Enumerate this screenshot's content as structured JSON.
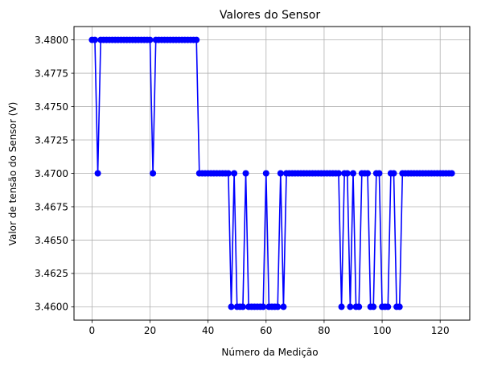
{
  "chart_data": {
    "type": "line",
    "title": "Valores do Sensor",
    "xlabel": "Número da Medição",
    "ylabel": "Valor de tensão do Sensor (V)",
    "xlim": [
      -6.2,
      130.2
    ],
    "ylim": [
      3.459,
      3.481
    ],
    "xticks": [
      0,
      20,
      40,
      60,
      80,
      100,
      120
    ],
    "xtick_labels": [
      "0",
      "20",
      "40",
      "60",
      "80",
      "100",
      "120"
    ],
    "yticks": [
      3.46,
      3.4625,
      3.465,
      3.4675,
      3.47,
      3.4725,
      3.475,
      3.4775,
      3.48
    ],
    "ytick_labels": [
      "3.4600",
      "3.4625",
      "3.4650",
      "3.4675",
      "3.4700",
      "3.4725",
      "3.4750",
      "3.4775",
      "3.4800"
    ],
    "grid": true,
    "color": "#0000ff",
    "marker": "circle",
    "series": [
      {
        "x": [
          0,
          1,
          2,
          3,
          4,
          5,
          6,
          7,
          8,
          9,
          10,
          11,
          12,
          13,
          14,
          15,
          16,
          17,
          18,
          19,
          20,
          21,
          22,
          23,
          24,
          25,
          26,
          27,
          28,
          29,
          30,
          31,
          32,
          33,
          34,
          35,
          36,
          37,
          38,
          39,
          40,
          41,
          42,
          43,
          44,
          45,
          46,
          47,
          48,
          49,
          50,
          51,
          52,
          53,
          54,
          55,
          56,
          57,
          58,
          59,
          60,
          61,
          62,
          63,
          64,
          65,
          66,
          67,
          68,
          69,
          70,
          71,
          72,
          73,
          74,
          75,
          76,
          77,
          78,
          79,
          80,
          81,
          82,
          83,
          84,
          85,
          86,
          87,
          88,
          89,
          90,
          91,
          92,
          93,
          94,
          95,
          96,
          97,
          98,
          99,
          100,
          101,
          102,
          103,
          104,
          105,
          106,
          107,
          108,
          109,
          110,
          111,
          112,
          113,
          114,
          115,
          116,
          117,
          118,
          119,
          120,
          121,
          122,
          123,
          124
        ],
        "values": [
          3.48,
          3.48,
          3.47,
          3.48,
          3.48,
          3.48,
          3.48,
          3.48,
          3.48,
          3.48,
          3.48,
          3.48,
          3.48,
          3.48,
          3.48,
          3.48,
          3.48,
          3.48,
          3.48,
          3.48,
          3.48,
          3.47,
          3.48,
          3.48,
          3.48,
          3.48,
          3.48,
          3.48,
          3.48,
          3.48,
          3.48,
          3.48,
          3.48,
          3.48,
          3.48,
          3.48,
          3.48,
          3.47,
          3.47,
          3.47,
          3.47,
          3.47,
          3.47,
          3.47,
          3.47,
          3.47,
          3.47,
          3.47,
          3.46,
          3.47,
          3.46,
          3.46,
          3.46,
          3.47,
          3.46,
          3.46,
          3.46,
          3.46,
          3.46,
          3.46,
          3.47,
          3.46,
          3.46,
          3.46,
          3.46,
          3.47,
          3.46,
          3.47,
          3.47,
          3.47,
          3.47,
          3.47,
          3.47,
          3.47,
          3.47,
          3.47,
          3.47,
          3.47,
          3.47,
          3.47,
          3.47,
          3.47,
          3.47,
          3.47,
          3.47,
          3.47,
          3.46,
          3.47,
          3.47,
          3.46,
          3.47,
          3.46,
          3.46,
          3.47,
          3.47,
          3.47,
          3.46,
          3.46,
          3.47,
          3.47,
          3.46,
          3.46,
          3.46,
          3.47,
          3.47,
          3.46,
          3.46,
          3.47,
          3.47,
          3.47,
          3.47,
          3.47,
          3.47,
          3.47,
          3.47,
          3.47,
          3.47,
          3.47,
          3.47,
          3.47,
          3.47,
          3.47,
          3.47,
          3.47,
          3.47
        ]
      }
    ]
  }
}
